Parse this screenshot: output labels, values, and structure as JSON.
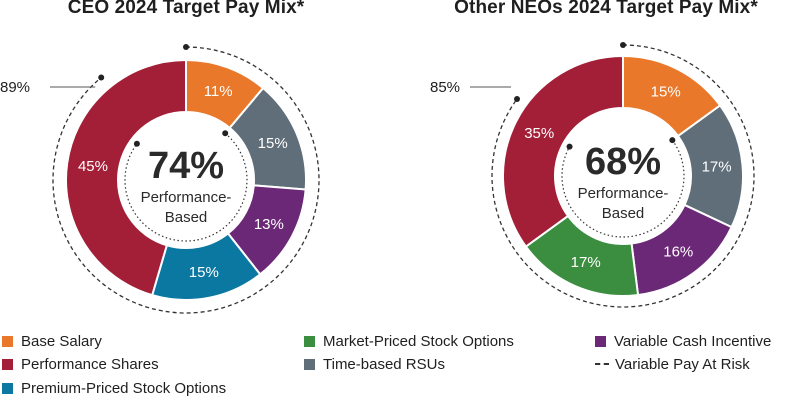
{
  "chart_data": [
    {
      "type": "pie",
      "title": "CEO 2024 Target Pay Mix*",
      "categories": [
        "Base Salary",
        "Time-based RSUs",
        "Variable Cash Incentive",
        "Premium-Priced Stock Options",
        "Performance Shares"
      ],
      "values": [
        11,
        15,
        13,
        15,
        45
      ],
      "value_labels": [
        "11%",
        "15%",
        "13%",
        "15%",
        "45%"
      ],
      "colors": [
        "#e9782a",
        "#5f6e78",
        "#6b2877",
        "#0a78a0",
        "#a31e37"
      ],
      "center_value": "74%",
      "center_label": [
        "Performance-",
        "Based"
      ],
      "at_risk_label": "89%",
      "at_risk_fraction": 0.89,
      "performance_based_fraction": 0.74
    },
    {
      "type": "pie",
      "title": "Other NEOs 2024 Target Pay Mix*",
      "categories": [
        "Base Salary",
        "Time-based RSUs",
        "Variable Cash Incentive",
        "Market-Priced Stock Options",
        "Performance Shares"
      ],
      "values": [
        15,
        17,
        16,
        17,
        35
      ],
      "value_labels": [
        "15%",
        "17%",
        "16%",
        "17%",
        "35%"
      ],
      "colors": [
        "#e9782a",
        "#5f6e78",
        "#6b2877",
        "#3b8e3f",
        "#a31e37"
      ],
      "center_value": "68%",
      "center_label": [
        "Performance-",
        "Based"
      ],
      "at_risk_label": "85%",
      "at_risk_fraction": 0.85,
      "performance_based_fraction": 0.68
    }
  ],
  "legend": [
    {
      "label": "Base Salary",
      "color": "#e9782a",
      "kind": "swatch"
    },
    {
      "label": "Performance Shares",
      "color": "#a31e37",
      "kind": "swatch"
    },
    {
      "label": "Premium-Priced Stock Options",
      "color": "#0a78a0",
      "kind": "swatch"
    },
    {
      "label": "Market-Priced Stock Options",
      "color": "#3b8e3f",
      "kind": "swatch"
    },
    {
      "label": "Time-based RSUs",
      "color": "#5f6e78",
      "kind": "swatch"
    },
    {
      "label": "Variable Cash Incentive",
      "color": "#6b2877",
      "kind": "swatch"
    },
    {
      "label": "Variable Pay At Risk",
      "color": "#333333",
      "kind": "dash"
    }
  ]
}
